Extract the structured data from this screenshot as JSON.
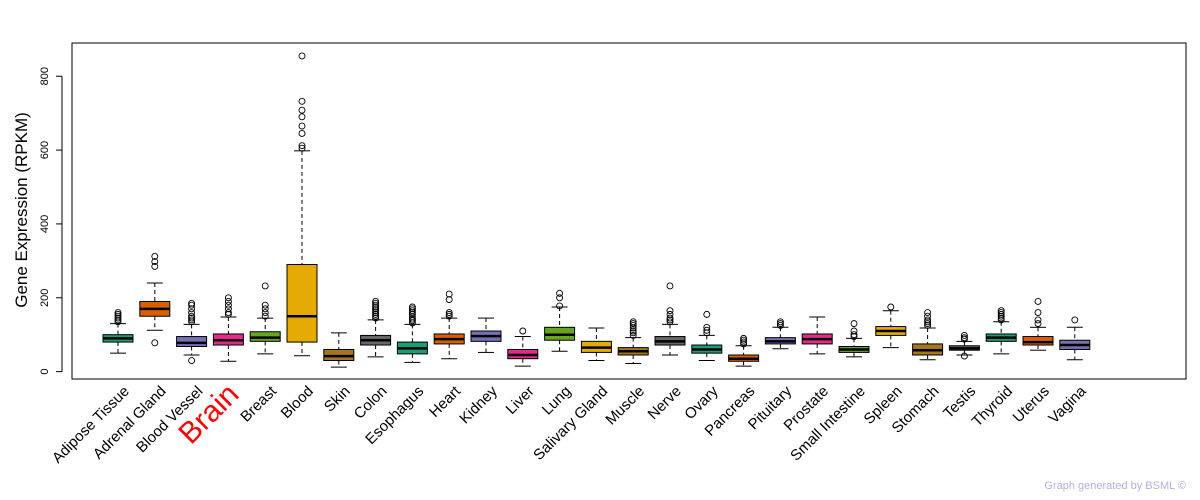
{
  "chart_data": {
    "type": "box",
    "ylabel": "Gene Expression (RPKM)",
    "y_ticks": [
      0,
      200,
      400,
      600,
      800
    ],
    "ylim": [
      -20,
      890
    ],
    "highlight_category": "Brain",
    "highlight_color": "#ff0000",
    "categories": [
      "Adipose Tissue",
      "Adrenal Gland",
      "Blood Vessel",
      "Brain",
      "Breast",
      "Blood",
      "Skin",
      "Colon",
      "Esophagus",
      "Heart",
      "Kidney",
      "Liver",
      "Lung",
      "Salivary Gland",
      "Muscle",
      "Nerve",
      "Ovary",
      "Pancreas",
      "Pituitary",
      "Prostate",
      "Small Intestine",
      "Spleen",
      "Stomach",
      "Testis",
      "Thyroid",
      "Uterus",
      "Vagina"
    ],
    "boxes": [
      {
        "color": "#1b9e77",
        "whisker_low": 50,
        "q1": 80,
        "median": 90,
        "q3": 100,
        "whisker_high": 130,
        "outliers": [
          135,
          140,
          145,
          150,
          155,
          160
        ]
      },
      {
        "color": "#d95f02",
        "whisker_low": 112,
        "q1": 150,
        "median": 170,
        "q3": 190,
        "whisker_high": 240,
        "outliers": [
          78,
          285,
          298,
          312
        ]
      },
      {
        "color": "#7570b3",
        "whisker_low": 45,
        "q1": 68,
        "median": 78,
        "q3": 95,
        "whisker_high": 128,
        "outliers": [
          30,
          135,
          140,
          145,
          150,
          160,
          170,
          180,
          185
        ]
      },
      {
        "color": "#e7298a",
        "whisker_low": 28,
        "q1": 72,
        "median": 85,
        "q3": 102,
        "whisker_high": 148,
        "outliers": [
          155,
          160,
          170,
          180,
          190,
          200
        ]
      },
      {
        "color": "#66a61e",
        "whisker_low": 48,
        "q1": 82,
        "median": 92,
        "q3": 108,
        "whisker_high": 145,
        "outliers": [
          150,
          160,
          170,
          180,
          232
        ]
      },
      {
        "color": "#e6ab02",
        "whisker_low": 43,
        "q1": 80,
        "median": 150,
        "q3": 290,
        "whisker_high": 598,
        "outliers": [
          605,
          612,
          645,
          665,
          690,
          708,
          732,
          855
        ]
      },
      {
        "color": "#a6761d",
        "whisker_low": 12,
        "q1": 30,
        "median": 42,
        "q3": 60,
        "whisker_high": 105,
        "outliers": []
      },
      {
        "color": "#666666",
        "whisker_low": 40,
        "q1": 72,
        "median": 85,
        "q3": 98,
        "whisker_high": 140,
        "outliers": [
          145,
          150,
          155,
          160,
          165,
          170,
          175,
          180,
          185,
          190
        ]
      },
      {
        "color": "#1b9e77",
        "whisker_low": 25,
        "q1": 48,
        "median": 63,
        "q3": 80,
        "whisker_high": 128,
        "outliers": [
          132,
          138,
          142,
          148,
          155,
          160,
          165,
          170,
          175
        ]
      },
      {
        "color": "#d95f02",
        "whisker_low": 35,
        "q1": 75,
        "median": 88,
        "q3": 102,
        "whisker_high": 145,
        "outliers": [
          150,
          155,
          160,
          195,
          210
        ]
      },
      {
        "color": "#7570b3",
        "whisker_low": 52,
        "q1": 82,
        "median": 96,
        "q3": 110,
        "whisker_high": 145,
        "outliers": []
      },
      {
        "color": "#e7298a",
        "whisker_low": 15,
        "q1": 35,
        "median": 45,
        "q3": 60,
        "whisker_high": 95,
        "outliers": [
          110
        ]
      },
      {
        "color": "#66a61e",
        "whisker_low": 55,
        "q1": 85,
        "median": 100,
        "q3": 120,
        "whisker_high": 175,
        "outliers": [
          178,
          200,
          212
        ]
      },
      {
        "color": "#e6ab02",
        "whisker_low": 30,
        "q1": 52,
        "median": 65,
        "q3": 82,
        "whisker_high": 118,
        "outliers": []
      },
      {
        "color": "#a6761d",
        "whisker_low": 22,
        "q1": 45,
        "median": 55,
        "q3": 65,
        "whisker_high": 92,
        "outliers": [
          98,
          105,
          110,
          118,
          125,
          130,
          135
        ]
      },
      {
        "color": "#666666",
        "whisker_low": 45,
        "q1": 72,
        "median": 82,
        "q3": 95,
        "whisker_high": 128,
        "outliers": [
          135,
          140,
          145,
          155,
          165,
          232
        ]
      },
      {
        "color": "#1b9e77",
        "whisker_low": 30,
        "q1": 50,
        "median": 60,
        "q3": 72,
        "whisker_high": 98,
        "outliers": [
          105,
          112,
          120,
          155
        ]
      },
      {
        "color": "#d95f02",
        "whisker_low": 15,
        "q1": 28,
        "median": 35,
        "q3": 45,
        "whisker_high": 70,
        "outliers": [
          75,
          80,
          85,
          90
        ]
      },
      {
        "color": "#7570b3",
        "whisker_low": 62,
        "q1": 75,
        "median": 82,
        "q3": 92,
        "whisker_high": 120,
        "outliers": [
          125,
          130,
          135
        ]
      },
      {
        "color": "#e7298a",
        "whisker_low": 48,
        "q1": 75,
        "median": 88,
        "q3": 102,
        "whisker_high": 148,
        "outliers": []
      },
      {
        "color": "#66a61e",
        "whisker_low": 40,
        "q1": 52,
        "median": 60,
        "q3": 68,
        "whisker_high": 90,
        "outliers": [
          95,
          100,
          110,
          130
        ]
      },
      {
        "color": "#e6ab02",
        "whisker_low": 65,
        "q1": 98,
        "median": 110,
        "q3": 122,
        "whisker_high": 165,
        "outliers": [
          175
        ]
      },
      {
        "color": "#a6761d",
        "whisker_low": 32,
        "q1": 45,
        "median": 58,
        "q3": 75,
        "whisker_high": 118,
        "outliers": [
          125,
          130,
          135,
          140,
          150,
          160
        ]
      },
      {
        "color": "#666666",
        "whisker_low": 45,
        "q1": 58,
        "median": 63,
        "q3": 70,
        "whisker_high": 82,
        "outliers": [
          42,
          88,
          92,
          98
        ]
      },
      {
        "color": "#1b9e77",
        "whisker_low": 48,
        "q1": 82,
        "median": 92,
        "q3": 102,
        "whisker_high": 135,
        "outliers": [
          140,
          145,
          150,
          155,
          160,
          165
        ]
      },
      {
        "color": "#d95f02",
        "whisker_low": 58,
        "q1": 72,
        "median": 80,
        "q3": 95,
        "whisker_high": 120,
        "outliers": [
          130,
          140,
          160,
          190
        ]
      },
      {
        "color": "#7570b3",
        "whisker_low": 32,
        "q1": 60,
        "median": 72,
        "q3": 85,
        "whisker_high": 120,
        "outliers": [
          140
        ]
      }
    ]
  },
  "footer": {
    "text": "Graph generated by BSML ©"
  }
}
